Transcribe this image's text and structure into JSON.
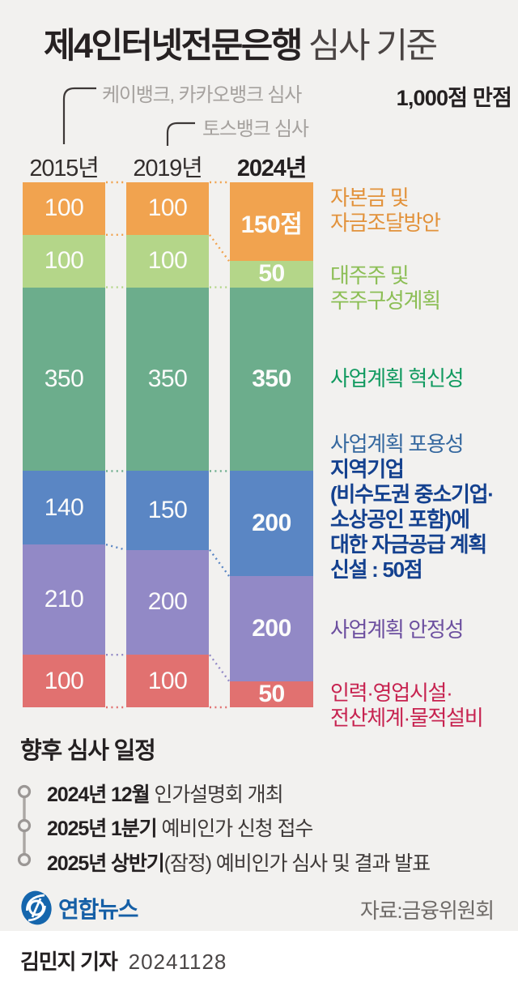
{
  "header": {
    "title_bold": "제4인터넷전문은행",
    "title_light": "심사 기준",
    "annotation_2015": "케이뱅크, 카카오뱅크 심사",
    "annotation_2019": "토스뱅크 심사",
    "max_score": "1,000점 만점"
  },
  "chart_data": {
    "type": "bar",
    "variant": "stacked-vertical",
    "unit": "점",
    "total_per_column": 1000,
    "categories": [
      "2015년",
      "2019년",
      "2024년"
    ],
    "columns": [
      {
        "label": "2015년",
        "bold": false
      },
      {
        "label": "2019년",
        "bold": false
      },
      {
        "label": "2024년",
        "bold": true
      }
    ],
    "series": [
      {
        "name": "자본금 및 자금조달방안",
        "color": "#F1A34F",
        "values": [
          100,
          100,
          150
        ],
        "labels": [
          "100",
          "100",
          "150점"
        ]
      },
      {
        "name": "대주주 및 주주구성계획",
        "color": "#B4D689",
        "values": [
          100,
          100,
          50
        ]
      },
      {
        "name": "사업계획 혁신성",
        "color": "#6CAD8C",
        "values": [
          350,
          350,
          350
        ]
      },
      {
        "name": "사업계획 포용성",
        "color": "#5A86C4",
        "values": [
          140,
          150,
          200
        ]
      },
      {
        "name": "사업계획 안정성",
        "color": "#9289C6",
        "values": [
          210,
          200,
          200
        ]
      },
      {
        "name": "인력·영업시설·전산체계·물적설비",
        "color": "#E17170",
        "values": [
          100,
          100,
          50
        ]
      }
    ]
  },
  "legend": [
    {
      "color": "#E2923B",
      "lines": [
        {
          "t": "자본금 및"
        },
        {
          "t": "자금조달방안"
        }
      ]
    },
    {
      "color": "#8CBE55",
      "lines": [
        {
          "t": "대주주 및"
        },
        {
          "t": "주주구성계획"
        }
      ]
    },
    {
      "color": "#119A60",
      "lines": [
        {
          "t": "사업계획 혁신성"
        }
      ]
    },
    {
      "color": "#35689F",
      "bold_color": "#14418F",
      "lines": [
        {
          "t": "사업계획 포용성"
        },
        {
          "t": "지역기업",
          "bold": true
        },
        {
          "t": "(비수도권 중소기업·",
          "bold": true
        },
        {
          "t": "소상공인 포함)에",
          "bold": true
        },
        {
          "t": "대한 자금공급 계획",
          "bold": true
        },
        {
          "t": "신설 : 50점",
          "bold": true
        }
      ]
    },
    {
      "color": "#6C4F9F",
      "lines": [
        {
          "t": "사업계획 안정성"
        }
      ]
    },
    {
      "color": "#C72350",
      "lines": [
        {
          "t": "인력·영업시설·"
        },
        {
          "t": "전산체계·물적설비"
        }
      ]
    }
  ],
  "schedule": {
    "title": "향후 심사 일정",
    "items": [
      {
        "bold": "2024년 12월",
        "rest": " 인가설명회 개최"
      },
      {
        "bold": "2025년 1분기",
        "rest": " 예비인가 신청 접수"
      },
      {
        "bold": "2025년 상반기",
        "rest": "(잠정) 예비인가 심사 및 결과 발표"
      }
    ]
  },
  "footer": {
    "logo_text": "연합뉴스",
    "source": "자료:금융위원회",
    "byline": "김민지 기자",
    "date": "20241128"
  }
}
